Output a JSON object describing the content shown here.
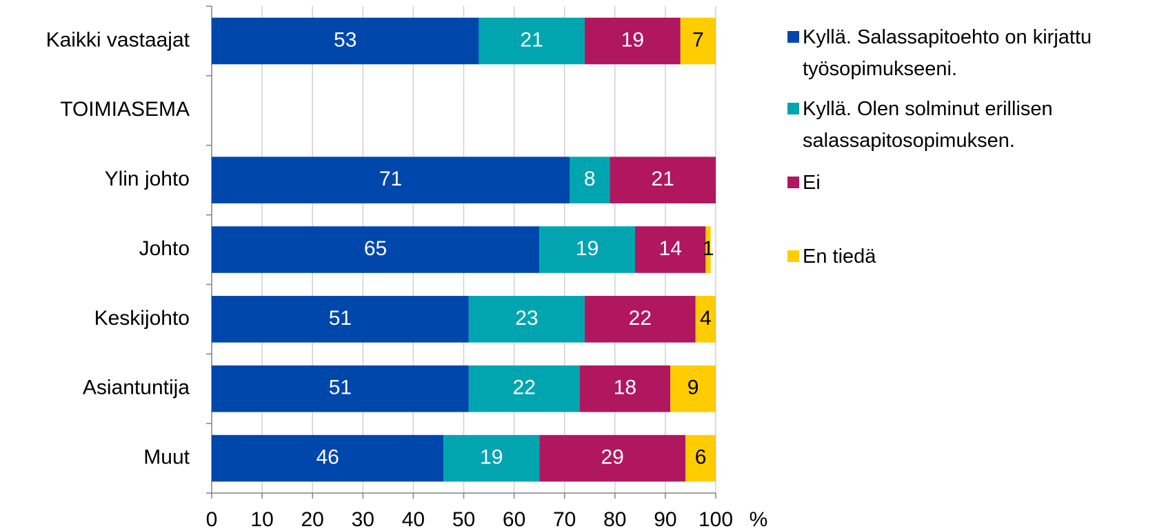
{
  "chart_data": {
    "type": "stacked_barh",
    "categories": [
      "Kaikki vastaajat",
      "TOIMIASEMA",
      "Ylin johto",
      "Johto",
      "Keskijohto",
      "Asiantuntija",
      "Muut"
    ],
    "series": [
      {
        "name": "Kyllä. Salassapitoehto on kirjattu työsopimukseeni.",
        "color": "#0047ab",
        "values": [
          53,
          null,
          71,
          65,
          51,
          51,
          46
        ]
      },
      {
        "name": "Kyllä. Olen solminut erillisen salassapitosopimuksen.",
        "color": "#00a5b0",
        "values": [
          21,
          null,
          8,
          19,
          23,
          22,
          19
        ]
      },
      {
        "name": "Ei",
        "color": "#b0175f",
        "values": [
          19,
          null,
          21,
          14,
          22,
          18,
          29
        ]
      },
      {
        "name": "En tiedä",
        "color": "#ffcc00",
        "values": [
          7,
          null,
          null,
          1,
          4,
          9,
          6
        ]
      }
    ],
    "xlim": [
      0,
      100
    ],
    "xticks": [
      0,
      10,
      20,
      30,
      40,
      50,
      60,
      70,
      80,
      90,
      100
    ],
    "xlabel": "%",
    "grid": true,
    "legend": "right"
  }
}
